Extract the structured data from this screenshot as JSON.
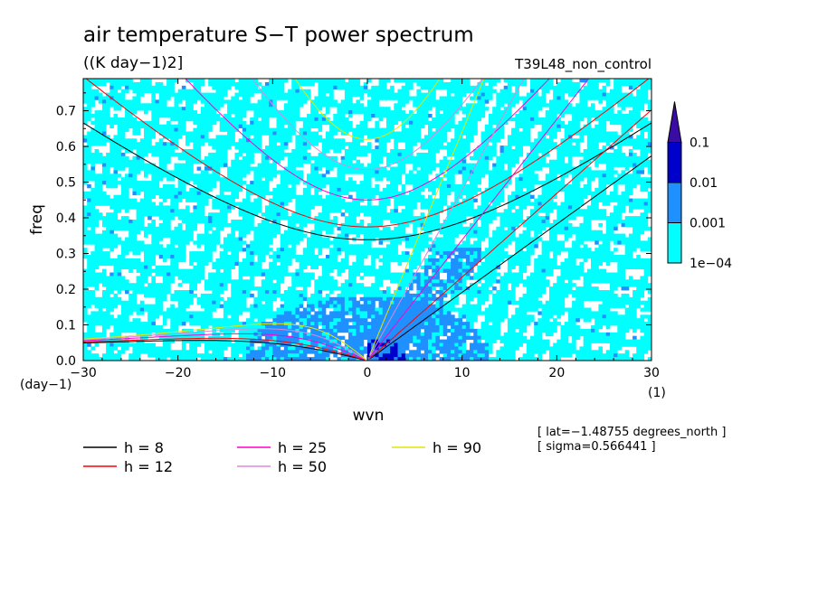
{
  "chart_data": {
    "type": "heatmap",
    "title": "air temperature S−T power spectrum",
    "subtitle": "((K day−1)2]",
    "experiment": "T39L48_non_control",
    "xlabel": "wvn",
    "ylabel": "freq",
    "x_unit": "(1)",
    "y_unit": "(day−1)",
    "xlim": [
      -30,
      30
    ],
    "ylim": [
      0,
      0.79
    ],
    "xticks": [
      -30,
      -20,
      -10,
      0,
      10,
      20,
      30
    ],
    "xtick_labels": [
      "−30",
      "−20",
      "−10",
      "0",
      "10",
      "20",
      "30"
    ],
    "yticks": [
      0,
      0.1,
      0.2,
      0.3,
      0.4,
      0.5,
      0.6,
      0.7
    ],
    "ytick_labels": [
      "0.0",
      "0.1",
      "0.2",
      "0.3",
      "0.4",
      "0.5",
      "0.6",
      "0.7"
    ],
    "contour_levels": [
      0.0001,
      0.001,
      0.01,
      0.1
    ],
    "colorbar_labels": [
      "1e−04",
      "0.001",
      "0.01",
      "0.1"
    ],
    "colorbar_colors": [
      "#00ffff",
      "#1e90ff",
      "#0000cd",
      "#3a0ca3"
    ],
    "dispersion_curves": [
      {
        "label": "h =  8",
        "h": 8,
        "color": "#000000"
      },
      {
        "label": "h = 12",
        "h": 12,
        "color": "#ff0000"
      },
      {
        "label": "h = 25",
        "h": 25,
        "color": "#ff00cc"
      },
      {
        "label": "h = 50",
        "h": 50,
        "color": "#dd88dd"
      },
      {
        "label": "h = 90",
        "h": 90,
        "color": "#e6e600"
      }
    ],
    "annotations": [
      "[ lat=−1.48755 degrees_north ]",
      "[ sigma=0.566441 ]"
    ]
  }
}
